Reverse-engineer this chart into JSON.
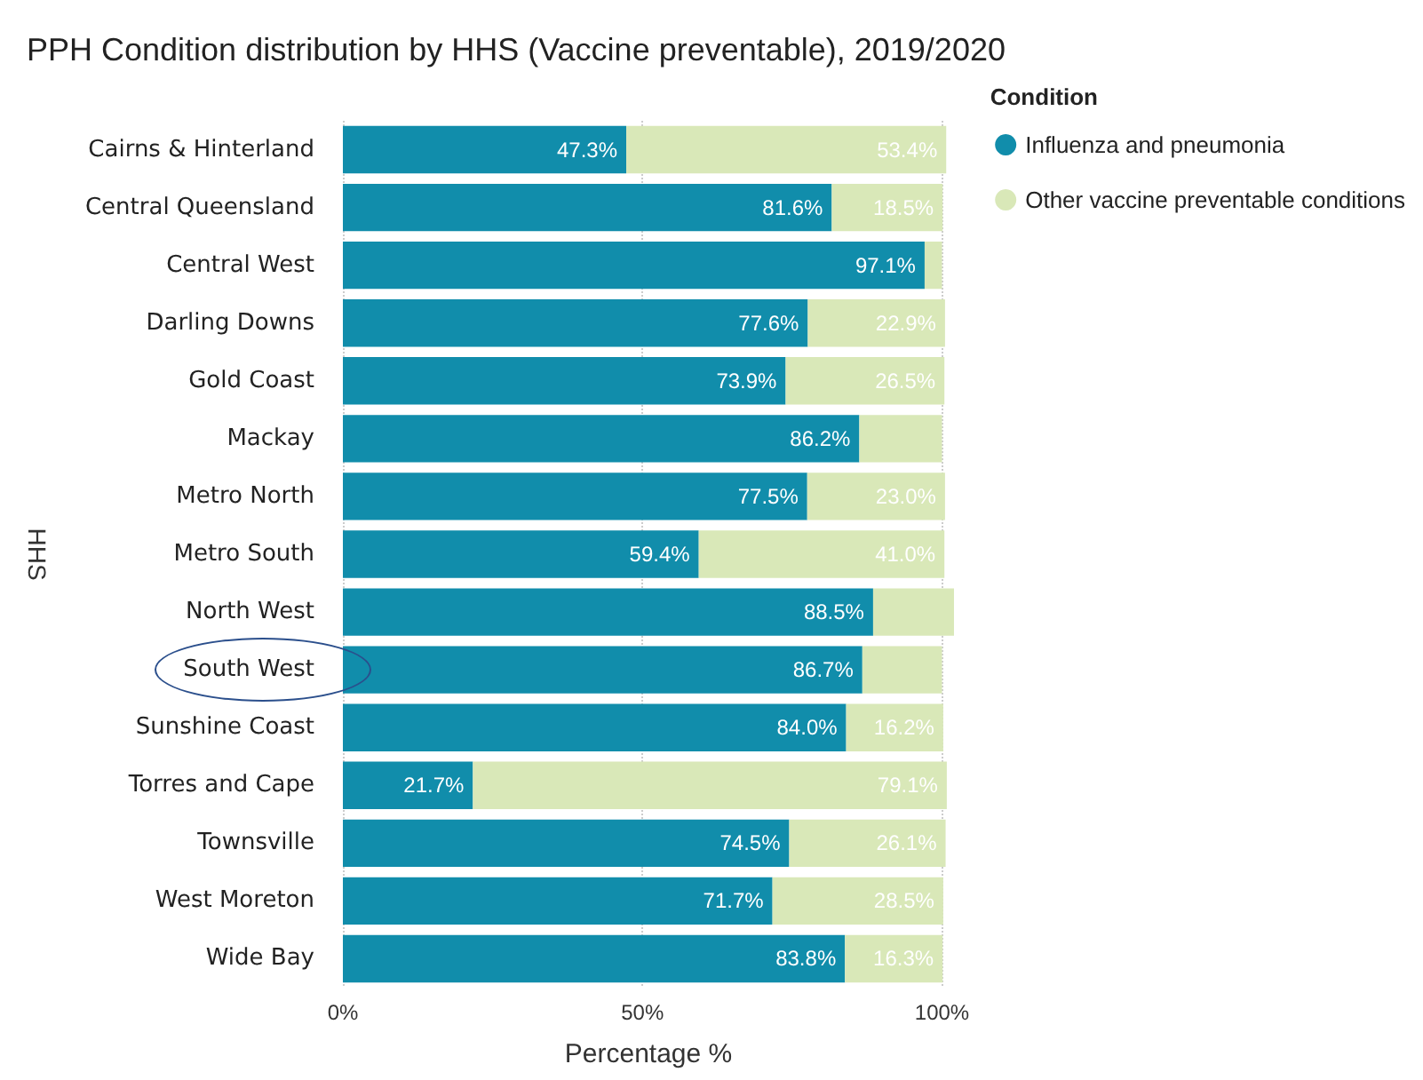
{
  "chart_data": {
    "type": "bar",
    "orientation": "horizontal",
    "stacked": true,
    "title": "PPH Condition distribution by HHS (Vaccine preventable), 2019/2020",
    "xlabel": "Percentage %",
    "ylabel": "HHS",
    "legend_title": "Condition",
    "legend": "top right",
    "grid": "x",
    "categories": [
      "Cairns & Hinterland",
      "Central Queensland",
      "Central West",
      "Darling Downs",
      "Gold Coast",
      "Mackay",
      "Metro North",
      "Metro South",
      "North West",
      "South West",
      "Sunshine Coast",
      "Torres and Cape",
      "Townsville",
      "West Moreton",
      "Wide Bay"
    ],
    "xlim": [
      0,
      102
    ],
    "xticks": [
      {
        "value": 0,
        "label": "0%"
      },
      {
        "value": 50,
        "label": "50%"
      },
      {
        "value": 100,
        "label": "100%"
      }
    ],
    "series": [
      {
        "name": "Influenza and pneumonia",
        "color": "#118dab",
        "values": [
          47.3,
          81.6,
          97.1,
          77.6,
          73.9,
          86.2,
          77.5,
          59.4,
          88.5,
          86.7,
          84.0,
          21.7,
          74.5,
          71.7,
          83.8
        ],
        "value_labels": [
          "47.3%",
          "81.6%",
          "97.1%",
          "77.6%",
          "73.9%",
          "86.2%",
          "77.5%",
          "59.4%",
          "88.5%",
          "86.7%",
          "84.0%",
          "21.7%",
          "74.5%",
          "71.7%",
          "83.8%"
        ]
      },
      {
        "name": "Other vaccine preventable conditions",
        "color": "#d9e8b8",
        "values": [
          53.4,
          18.5,
          2.9,
          22.9,
          26.5,
          13.8,
          23.0,
          41.0,
          13.5,
          13.3,
          16.2,
          79.1,
          26.1,
          28.5,
          16.3
        ],
        "value_labels": [
          "53.4%",
          "18.5%",
          null,
          "22.9%",
          "26.5%",
          null,
          "23.0%",
          "41.0%",
          null,
          null,
          "16.2%",
          "79.1%",
          "26.1%",
          "28.5%",
          "16.3%"
        ]
      }
    ]
  }
}
